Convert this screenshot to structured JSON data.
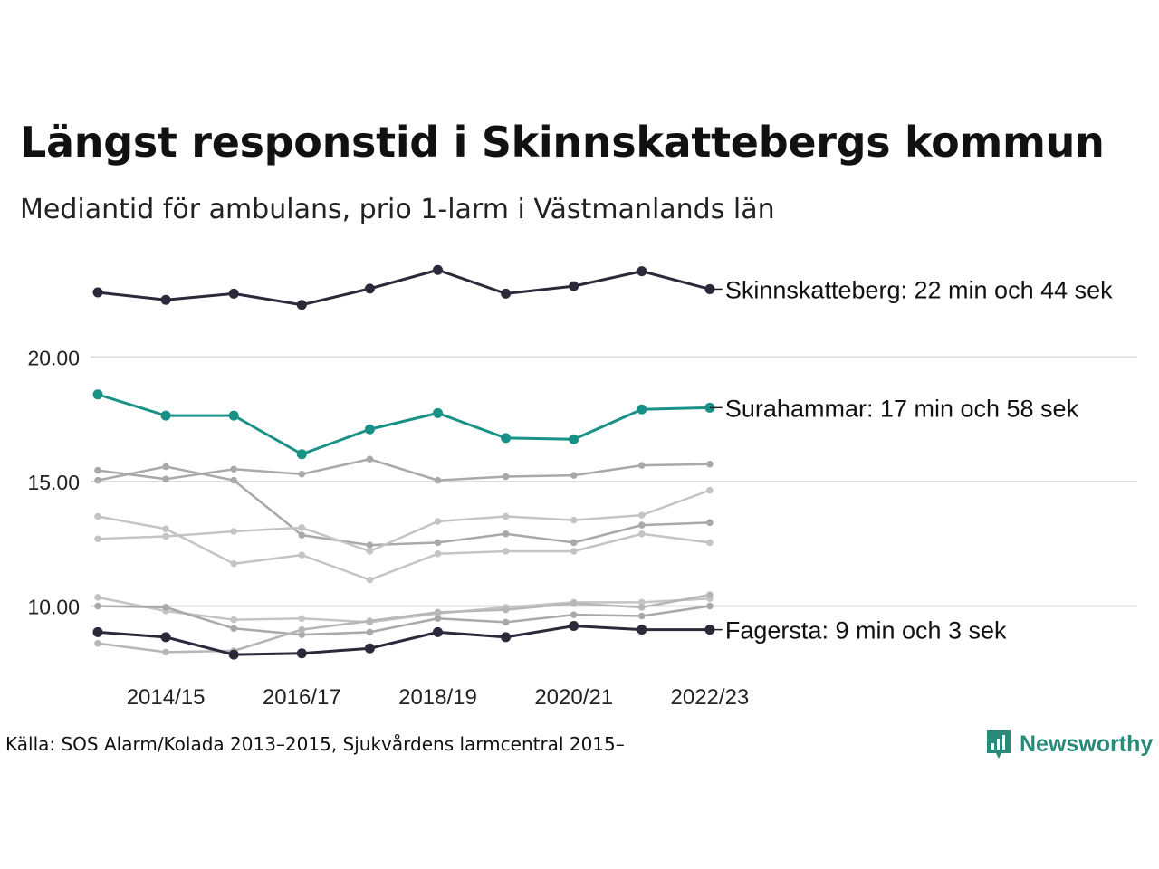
{
  "header": {
    "title": "Längst responstid i Skinnskattebergs kommun",
    "subtitle": "Mediantid för ambulans, prio 1-larm i Västmanlands län"
  },
  "footer": {
    "source": "Källa: SOS Alarm/Kolada 2013–2015, Sjukvårdens larmcentral 2015–",
    "brand": "Newsworthy"
  },
  "colors": {
    "highlight_dark": "#2b2a3b",
    "highlight_teal": "#1a9186",
    "other_series": [
      "#a9a9a9",
      "#c4c4c4",
      "#b6b6b6"
    ],
    "grid": "#dcdcdc",
    "brand": "#2a8a7a"
  },
  "chart_data": {
    "type": "line",
    "x": [
      "2013/14",
      "2014/15",
      "2015/16",
      "2016/17",
      "2017/18",
      "2018/19",
      "2019/20",
      "2020/21",
      "2021/22",
      "2022/23"
    ],
    "x_tick_labels": [
      "2014/15",
      "2016/17",
      "2018/19",
      "2020/21",
      "2022/23"
    ],
    "y_ticks": [
      10,
      15,
      20
    ],
    "y_tick_labels": [
      "10.00",
      "15.00",
      "20.00"
    ],
    "ylim": [
      7.5,
      24.5
    ],
    "grid": true,
    "series": [
      {
        "values": [
          15.45,
          15.1,
          15.5,
          15.3,
          15.9,
          15.05,
          15.2,
          15.25,
          15.65,
          15.7
        ],
        "color": "#a9a9a9",
        "highlight": false
      },
      {
        "values": [
          15.05,
          15.6,
          15.05,
          12.85,
          12.45,
          12.55,
          12.9,
          12.55,
          13.25,
          13.35
        ],
        "color": "#a9a9a9",
        "highlight": false
      },
      {
        "values": [
          13.6,
          13.1,
          11.7,
          12.05,
          11.05,
          12.1,
          12.2,
          12.2,
          12.9,
          12.55
        ],
        "color": "#c4c4c4",
        "highlight": false
      },
      {
        "values": [
          12.7,
          12.8,
          13.0,
          13.15,
          12.2,
          13.4,
          13.6,
          13.45,
          13.65,
          14.65
        ],
        "color": "#c4c4c4",
        "highlight": false
      },
      {
        "values": [
          10.35,
          9.8,
          9.45,
          9.5,
          9.35,
          9.7,
          9.95,
          10.15,
          10.15,
          10.3
        ],
        "color": "#c4c4c4",
        "highlight": false
      },
      {
        "values": [
          10.0,
          9.95,
          9.1,
          8.85,
          8.95,
          9.5,
          9.35,
          9.65,
          9.6,
          10.0
        ],
        "color": "#a9a9a9",
        "highlight": false
      },
      {
        "values": [
          8.5,
          8.15,
          8.2,
          9.05,
          9.4,
          9.75,
          9.85,
          10.1,
          9.95,
          10.45
        ],
        "color": "#b6b6b6",
        "highlight": false
      },
      {
        "name": "Fagersta",
        "values": [
          8.95,
          8.75,
          8.05,
          8.1,
          8.3,
          8.95,
          8.75,
          9.2,
          9.05,
          9.05
        ],
        "color": "#2b2a3b",
        "highlight": true,
        "label": "Fagersta: 9 min och 3 sek"
      },
      {
        "name": "Surahammar",
        "values": [
          18.5,
          17.65,
          17.65,
          16.1,
          17.1,
          17.75,
          16.75,
          16.7,
          17.9,
          17.97
        ],
        "color": "#1a9186",
        "highlight": true,
        "label": "Surahammar: 17 min och 58 sek"
      },
      {
        "name": "Skinnskatteberg",
        "values": [
          22.6,
          22.3,
          22.55,
          22.1,
          22.75,
          23.5,
          22.55,
          22.85,
          23.45,
          22.73
        ],
        "color": "#2b2a3b",
        "highlight": true,
        "label": "Skinnskatteberg: 22 min och 44 sek"
      }
    ]
  }
}
